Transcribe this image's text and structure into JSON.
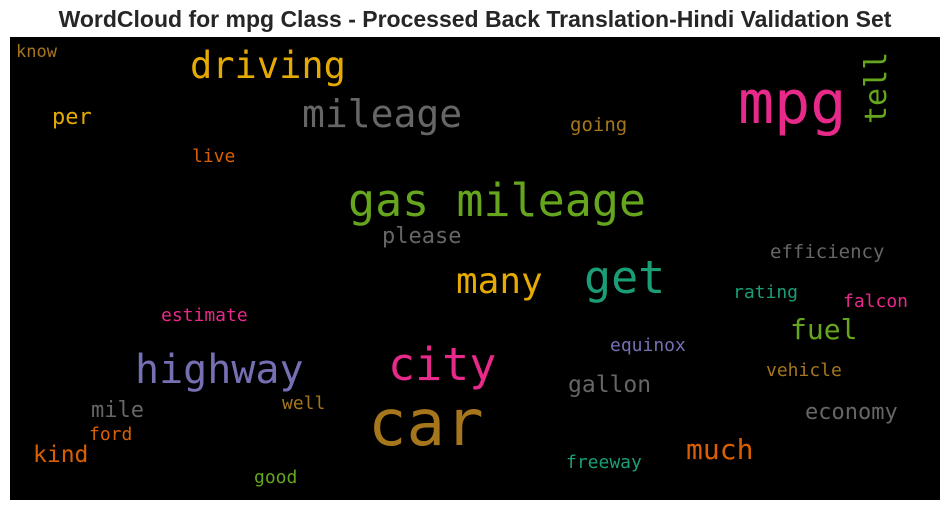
{
  "chart_data": {
    "type": "wordcloud",
    "title": "WordCloud for mpg Class - Processed Back Translation-Hindi Validation Set",
    "background": "#000000",
    "words": [
      {
        "text": "know",
        "color": "#a6761d"
      },
      {
        "text": "driving",
        "color": "#e6ab02"
      },
      {
        "text": "mpg",
        "color": "#e7298a"
      },
      {
        "text": "tell",
        "color": "#66a61e"
      },
      {
        "text": "per",
        "color": "#e6ab02"
      },
      {
        "text": "mileage",
        "color": "#666666"
      },
      {
        "text": "going",
        "color": "#a6761d"
      },
      {
        "text": "live",
        "color": "#d95f02"
      },
      {
        "text": "gas mileage",
        "color": "#66a61e"
      },
      {
        "text": "please",
        "color": "#666666"
      },
      {
        "text": "efficiency",
        "color": "#666666"
      },
      {
        "text": "many",
        "color": "#e6ab02"
      },
      {
        "text": "get",
        "color": "#1b9e77"
      },
      {
        "text": "rating",
        "color": "#1b9e77"
      },
      {
        "text": "falcon",
        "color": "#e7298a"
      },
      {
        "text": "estimate",
        "color": "#e7298a"
      },
      {
        "text": "fuel",
        "color": "#66a61e"
      },
      {
        "text": "highway",
        "color": "#7570b3"
      },
      {
        "text": "city",
        "color": "#e7298a"
      },
      {
        "text": "equinox",
        "color": "#7570b3"
      },
      {
        "text": "vehicle",
        "color": "#a6761d"
      },
      {
        "text": "gallon",
        "color": "#666666"
      },
      {
        "text": "mile",
        "color": "#666666"
      },
      {
        "text": "well",
        "color": "#a6761d"
      },
      {
        "text": "economy",
        "color": "#666666"
      },
      {
        "text": "car",
        "color": "#a6761d"
      },
      {
        "text": "ford",
        "color": "#d95f02"
      },
      {
        "text": "kind",
        "color": "#d95f02"
      },
      {
        "text": "much",
        "color": "#d95f02"
      },
      {
        "text": "freeway",
        "color": "#1b9e77"
      },
      {
        "text": "good",
        "color": "#66a61e"
      }
    ]
  }
}
